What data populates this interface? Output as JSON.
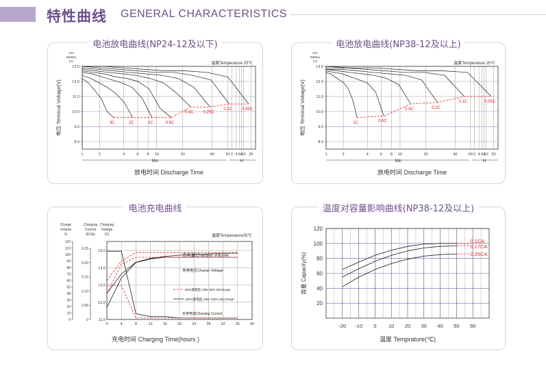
{
  "header": {
    "title": "特性曲线",
    "subtitle": "GENERAL CHARACTERISTICS"
  },
  "colors": {
    "accent": "#6b4f8a",
    "curve": "#1a1a1a",
    "dashed": "#e02020",
    "gridMajor": "#333333",
    "gridMinor": "#9a9a9a",
    "gridPurple": "#7a5aa0"
  },
  "chart_data": [
    {
      "type": "line",
      "title": "电池放电曲线(NP24-12及以下)",
      "battery_label": [
        "12V",
        "Battery",
        "(V)"
      ],
      "ylabel": "电压 Terminal Voltage(V)",
      "xlabel": "放电时间 Discharge Time",
      "temperature_note": "温度Temperature 25℃",
      "y_ticks": [
        "13.0",
        "12.0",
        "11.0",
        "10.0",
        "9.0",
        "8.0"
      ],
      "ylim": [
        7.5,
        13.0
      ],
      "x_ticks": [
        "1",
        "2",
        "4",
        "6",
        "8",
        "10",
        "20",
        "40",
        "60",
        "2",
        "4",
        "6",
        "8",
        "10",
        "20"
      ],
      "x_units": [
        "Min",
        "H"
      ],
      "rates": [
        "3C",
        "2C",
        "1C",
        "0.6C",
        "0.4C",
        "0.25C",
        "0.1C",
        "0.05C"
      ],
      "series": [
        {
          "name": "3C",
          "values": [
            12.2,
            11.9,
            11.4,
            10.9,
            10.0,
            9.6
          ]
        },
        {
          "name": "2C",
          "values": [
            12.4,
            12.2,
            11.9,
            11.6,
            11.2,
            10.6,
            9.6
          ]
        },
        {
          "name": "1C",
          "values": [
            12.6,
            12.5,
            12.3,
            12.1,
            11.9,
            11.6,
            10.9,
            9.6
          ]
        },
        {
          "name": "0.6C",
          "values": [
            12.7,
            12.6,
            12.5,
            12.3,
            12.2,
            12.0,
            11.5,
            10.2,
            9.6
          ]
        },
        {
          "name": "0.4C",
          "values": [
            12.8,
            12.7,
            12.6,
            12.5,
            12.4,
            12.2,
            11.9,
            11.2,
            10.3
          ]
        },
        {
          "name": "0.25C",
          "values": [
            12.9,
            12.8,
            12.7,
            12.6,
            12.5,
            12.4,
            12.2,
            11.6,
            10.3
          ]
        },
        {
          "name": "0.1C",
          "values": [
            13.0,
            12.9,
            12.8,
            12.7,
            12.6,
            12.6,
            12.4,
            12.1,
            10.5
          ]
        },
        {
          "name": "0.05C",
          "values": [
            13.0,
            13.0,
            12.9,
            12.8,
            12.7,
            12.7,
            12.6,
            12.3,
            10.5
          ]
        }
      ]
    },
    {
      "type": "line",
      "title": "电池放电曲线(NP38-12及以上)",
      "battery_label": [
        "12V",
        "Battery",
        "(V)"
      ],
      "ylabel": "电压 Terminal Voltage(V)",
      "xlabel": "放电时间 Discharge Time",
      "temperature_note": "温度Temperature 25℃",
      "y_ticks": [
        "13.0",
        "12.0",
        "11.0",
        "10.0",
        "9.0",
        "8.0"
      ],
      "ylim": [
        7.5,
        13.0
      ],
      "x_ticks": [
        "1",
        "2",
        "4",
        "6",
        "8",
        "10",
        "20",
        "40",
        "60",
        "2",
        "4",
        "6",
        "8",
        "10",
        "20"
      ],
      "x_units": [
        "Min",
        "H"
      ],
      "rates": [
        "1C",
        "0.6C",
        "0.4C",
        "0.2C",
        "0.1C",
        "0.05C"
      ],
      "series": [
        {
          "name": "1C",
          "values": [
            12.6,
            12.5,
            12.3,
            12.1,
            11.9,
            11.5,
            10.8,
            9.6
          ]
        },
        {
          "name": "0.6C",
          "values": [
            12.7,
            12.6,
            12.5,
            12.3,
            12.1,
            11.9,
            11.3,
            9.7
          ]
        },
        {
          "name": "0.4C",
          "values": [
            12.8,
            12.7,
            12.6,
            12.5,
            12.4,
            12.2,
            11.8,
            10.5
          ]
        },
        {
          "name": "0.2C",
          "values": [
            12.8,
            12.8,
            12.7,
            12.6,
            12.5,
            12.4,
            12.1,
            10.6
          ]
        },
        {
          "name": "0.1C",
          "values": [
            12.9,
            12.9,
            12.8,
            12.7,
            12.6,
            12.6,
            12.4,
            11.0
          ]
        },
        {
          "name": "0.05C",
          "values": [
            13.0,
            12.9,
            12.9,
            12.8,
            12.7,
            12.7,
            12.6,
            11.0
          ]
        }
      ]
    },
    {
      "type": "line",
      "title": "电池充电曲线",
      "temperature_note": "温度Temperature25℃",
      "axis_headers": [
        {
          "lines": [
            "Charge",
            "Volume",
            "%"
          ]
        },
        {
          "lines": [
            "Charging",
            "Current",
            "(KCA)"
          ]
        },
        {
          "lines": [
            "Charging",
            "Voltage",
            "(V)"
          ]
        }
      ],
      "volume_ticks": [
        "120",
        "110",
        "100",
        "90",
        "80",
        "70",
        "60",
        "50",
        "40",
        "30",
        "20",
        "10",
        "0"
      ],
      "current_ticks": [
        "0.25",
        "0.20",
        "0.15",
        "0.10",
        "0.05",
        "0"
      ],
      "voltage_ticks": [
        "15.0",
        "14.0",
        "13.0",
        "12.0",
        "11.0"
      ],
      "x_ticks": [
        "0",
        "4",
        "8",
        "12",
        "16",
        "20",
        "24",
        "28",
        "32",
        "36",
        "40"
      ],
      "xlabel": "充电时间 Charging Time(hours )",
      "labels": {
        "charged_volume": "充电量Charged Volume",
        "charge_voltage": "充电电压Charge Voltage",
        "after_50": "50%放电后 After 50% Discharge",
        "after_100": "100%放电后 After 100% Discharge",
        "charging_current": "充电电流Charging Current"
      },
      "x": [
        0,
        4,
        8,
        12,
        16,
        20,
        24,
        28,
        32,
        36
      ],
      "series": [
        {
          "name": "充电量Charged Volume",
          "values": [
            40,
            70,
            88,
            94,
            97,
            99,
            100,
            101,
            102,
            102
          ]
        },
        {
          "name": "充电电压Charge Voltage",
          "values": [
            11.7,
            13.4,
            14.3,
            14.5,
            14.6,
            14.6,
            14.6,
            14.6,
            14.6,
            14.6
          ]
        },
        {
          "name": "充电电流Charging Current",
          "values": [
            0.24,
            0.24,
            0.02,
            0.01,
            0.01,
            0.005,
            0.005,
            0.005,
            0.005,
            0.005
          ]
        }
      ]
    },
    {
      "type": "line",
      "title": "温度对容量影响曲线(NP38-12及以上)",
      "ylabel": "容量 Capacity(%)",
      "xlabel": "温度 Temprature(℃)",
      "x": [
        -20,
        -10,
        0,
        10,
        20,
        30,
        40,
        50
      ],
      "x_ticks": [
        "-20",
        "-10",
        "0",
        "10",
        "20",
        "30",
        "40",
        "50",
        "60"
      ],
      "y_ticks": [
        "120",
        "100",
        "80",
        "60",
        "40",
        "20"
      ],
      "ylim": [
        0,
        120
      ],
      "xlim": [
        -30,
        70
      ],
      "series": [
        {
          "name": "0.1CA",
          "values": [
            65,
            75,
            84,
            91,
            96,
            99,
            100,
            100
          ]
        },
        {
          "name": "0.17CA",
          "values": [
            55,
            66,
            76,
            84,
            90,
            94,
            96,
            97
          ]
        },
        {
          "name": "0.25CA",
          "values": [
            42,
            55,
            65,
            73,
            79,
            83,
            85,
            86
          ]
        }
      ]
    }
  ]
}
